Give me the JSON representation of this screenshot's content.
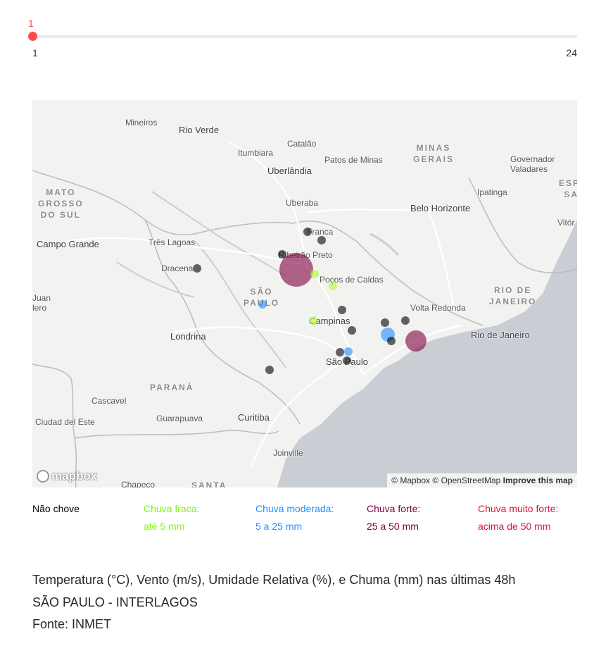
{
  "slider": {
    "current": "1",
    "min": "1",
    "max": "24",
    "value_fraction": 0
  },
  "map": {
    "labels": [
      {
        "text": "Mineiros",
        "cls": ""
      },
      {
        "text": "Rio Verde",
        "cls": "big"
      },
      {
        "text": "Catalão",
        "cls": ""
      },
      {
        "text": "Itumbiara",
        "cls": ""
      },
      {
        "text": "Patos de Minas",
        "cls": ""
      },
      {
        "text": "Uberlândia",
        "cls": "big"
      },
      {
        "text": "Governador\nValadares",
        "cls": ""
      },
      {
        "text": "MATO\nGROSSO\nDO SUL",
        "cls": "region"
      },
      {
        "text": "MINAS\nGERAIS",
        "cls": "region"
      },
      {
        "text": "Ipatinga",
        "cls": ""
      },
      {
        "text": "Uberaba",
        "cls": ""
      },
      {
        "text": "Belo Horizonte",
        "cls": "big"
      },
      {
        "text": "Franca",
        "cls": ""
      },
      {
        "text": "Campo Grande",
        "cls": "big"
      },
      {
        "text": "Três Lagoas",
        "cls": ""
      },
      {
        "text": "Ribeirão Preto",
        "cls": ""
      },
      {
        "text": "Dracena",
        "cls": ""
      },
      {
        "text": "Poços de Caldas",
        "cls": ""
      },
      {
        "text": "SÃO\nPAULO",
        "cls": "region"
      },
      {
        "text": "RIO DE\nJANEIRO",
        "cls": "region"
      },
      {
        "text": "Volta Redonda",
        "cls": ""
      },
      {
        "text": "Campinas",
        "cls": "big"
      },
      {
        "text": "Rio de Janeiro",
        "cls": "big"
      },
      {
        "text": "Londrina",
        "cls": "big"
      },
      {
        "text": "São Paulo",
        "cls": "big"
      },
      {
        "text": "PARANÁ",
        "cls": "region"
      },
      {
        "text": "Cascavel",
        "cls": ""
      },
      {
        "text": "Guarapuava",
        "cls": ""
      },
      {
        "text": "Curitiba",
        "cls": "big"
      },
      {
        "text": "Ciudad del Este",
        "cls": ""
      },
      {
        "text": "Joinville",
        "cls": ""
      },
      {
        "text": "Chapeco",
        "cls": ""
      },
      {
        "text": "SANTA",
        "cls": "region"
      },
      {
        "text": "Vitór",
        "cls": ""
      },
      {
        "text": "ESPÍR\nSAN",
        "cls": "region"
      },
      {
        "text": "Juan\nlero",
        "cls": ""
      }
    ],
    "attribution": {
      "mapbox": "© Mapbox",
      "osm": "© OpenStreetMap",
      "improve": "Improve this map"
    },
    "logo": "mapbox",
    "stations": [
      {
        "category": "forte",
        "radius": 24
      },
      {
        "category": "forte",
        "radius": 15
      },
      {
        "category": "moderada",
        "radius": 10
      },
      {
        "category": "moderada",
        "radius": 6
      },
      {
        "category": "moderada",
        "radius": 6
      },
      {
        "category": "fraca",
        "radius": 6
      },
      {
        "category": "fraca",
        "radius": 6
      },
      {
        "category": "fraca",
        "radius": 6
      },
      {
        "category": "nao",
        "radius": 6
      },
      {
        "category": "nao",
        "radius": 6
      },
      {
        "category": "nao",
        "radius": 6
      },
      {
        "category": "nao",
        "radius": 6
      },
      {
        "category": "nao",
        "radius": 6
      },
      {
        "category": "nao",
        "radius": 6
      },
      {
        "category": "nao",
        "radius": 6
      },
      {
        "category": "nao",
        "radius": 6
      },
      {
        "category": "nao",
        "radius": 6
      },
      {
        "category": "nao",
        "radius": 6
      },
      {
        "category": "nao",
        "radius": 6
      },
      {
        "category": "nao",
        "radius": 6
      }
    ],
    "colors": {
      "nao": "#000000",
      "fraca": "#adff2f",
      "moderada": "#1e90ff",
      "forte": "#800040",
      "muito_forte": "#dc143c",
      "water": "#c8ced3",
      "land": "#f2f2f1",
      "road": "#ffffff",
      "border": "#b9b9b9"
    }
  },
  "legend": [
    {
      "title": "Não chove",
      "subtitle": "",
      "color": "#000000"
    },
    {
      "title": "Chuva fraca:",
      "subtitle": "até 5 mm",
      "color": "#7cfc00"
    },
    {
      "title": "Chuva moderada:",
      "subtitle": "5 a 25 mm",
      "color": "#1e90ff"
    },
    {
      "title": "Chuva forte:",
      "subtitle": "25 a 50 mm",
      "color": "#800040"
    },
    {
      "title": "Chuva muito forte:",
      "subtitle": "acima de 50 mm",
      "color": "#dc143c"
    }
  ],
  "info": {
    "line1": "Temperatura (°C), Vento (m/s), Umidade Relativa (%), e Chuma (mm) nas últimas 48h",
    "line2": "SÃO PAULO - INTERLAGOS",
    "line3": "Fonte: INMET"
  }
}
